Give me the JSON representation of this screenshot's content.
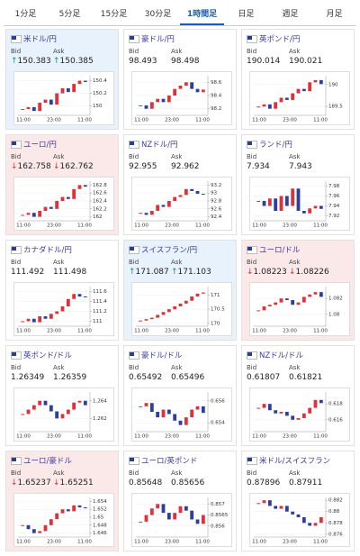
{
  "tabs": [
    "1分足",
    "5分足",
    "15分足",
    "30分足",
    "1時間足",
    "日足",
    "週足",
    "月足"
  ],
  "active_tab": 4,
  "labels": {
    "bid": "Bid",
    "ask": "Ask"
  },
  "x_labels": [
    "11:00",
    "23:00",
    "11:00"
  ],
  "cards": [
    {
      "name": "米ドル/円",
      "bid": "150.383",
      "ask": "150.385",
      "direction": "up",
      "chart": {
        "type": "candlestick",
        "ylim": [
          149.85,
          150.48
        ],
        "yticks": [
          150,
          150.2,
          150.4
        ],
        "values": [
          149.95,
          149.98,
          149.92,
          150.05,
          150.1,
          150.02,
          150.2,
          150.28,
          150.22,
          150.35,
          150.4,
          150.38
        ]
      }
    },
    {
      "name": "豪ドル/円",
      "bid": "98.493",
      "ask": "98.498",
      "direction": "none",
      "chart": {
        "type": "candlestick",
        "ylim": [
          98.1,
          98.7
        ],
        "yticks": [
          98.2,
          98.4,
          98.6
        ],
        "values": [
          98.25,
          98.2,
          98.3,
          98.35,
          98.3,
          98.4,
          98.5,
          98.55,
          98.6,
          98.5,
          98.45,
          98.49
        ]
      }
    },
    {
      "name": "英ポンド/円",
      "bid": "190.014",
      "ask": "190.021",
      "direction": "none",
      "chart": {
        "type": "candlestick",
        "ylim": [
          189.3,
          190.2
        ],
        "yticks": [
          189.5,
          190
        ],
        "values": [
          189.5,
          189.55,
          189.45,
          189.6,
          189.7,
          189.65,
          189.8,
          189.9,
          189.85,
          190.05,
          190.1,
          190.01
        ]
      }
    },
    {
      "name": "ユーロ/円",
      "bid": "162.758",
      "ask": "162.762",
      "direction": "down",
      "chart": {
        "type": "candlestick",
        "ylim": [
          161.9,
          162.9
        ],
        "yticks": [
          162,
          162.2,
          162.4,
          162.6,
          162.8
        ],
        "values": [
          162.05,
          162.1,
          162.0,
          162.15,
          162.25,
          162.2,
          162.4,
          162.5,
          162.45,
          162.7,
          162.8,
          162.76
        ]
      }
    },
    {
      "name": "NZドル/円",
      "bid": "92.955",
      "ask": "92.962",
      "direction": "none",
      "chart": {
        "type": "candlestick",
        "ylim": [
          92.3,
          93.3
        ],
        "yticks": [
          92.4,
          92.6,
          92.8,
          93,
          93.2
        ],
        "values": [
          92.5,
          92.45,
          92.55,
          92.7,
          92.65,
          92.8,
          92.9,
          92.95,
          93.1,
          93.05,
          92.98,
          92.96
        ]
      }
    },
    {
      "name": "ランド/円",
      "bid": "7.934",
      "ask": "7.943",
      "direction": "none",
      "chart": {
        "type": "candlestick",
        "ylim": [
          7.91,
          7.99
        ],
        "yticks": [
          7.92,
          7.94,
          7.96,
          7.98
        ],
        "values": [
          7.95,
          7.94,
          7.955,
          7.93,
          7.96,
          7.94,
          7.975,
          7.93,
          7.925,
          7.935,
          7.94,
          7.934
        ]
      }
    },
    {
      "name": "カナダドル/円",
      "bid": "111.492",
      "ask": "111.498",
      "direction": "none",
      "chart": {
        "type": "candlestick",
        "ylim": [
          110.9,
          111.7
        ],
        "yticks": [
          111,
          111.2,
          111.4,
          111.6
        ],
        "values": [
          111.0,
          111.05,
          110.98,
          111.1,
          111.05,
          111.15,
          111.2,
          111.3,
          111.45,
          111.55,
          111.5,
          111.49
        ]
      }
    },
    {
      "name": "スイスフラン/円",
      "bid": "171.087",
      "ask": "171.103",
      "direction": "up",
      "chart": {
        "type": "candlestick",
        "ylim": [
          169.9,
          171.3
        ],
        "yticks": [
          170,
          170.5,
          171
        ],
        "values": [
          170.1,
          170.15,
          170.2,
          170.3,
          170.4,
          170.5,
          170.6,
          170.7,
          170.8,
          170.95,
          171.05,
          171.09
        ]
      }
    },
    {
      "name": "ユーロ/ドル",
      "bid": "1.08223",
      "ask": "1.08226",
      "direction": "down",
      "chart": {
        "type": "candlestick",
        "ylim": [
          1.0785,
          1.0835
        ],
        "yticks": [
          1.08,
          1.082
        ],
        "values": [
          1.0805,
          1.081,
          1.0812,
          1.0815,
          1.082,
          1.0818,
          1.0812,
          1.0815,
          1.0822,
          1.0825,
          1.0828,
          1.0822
        ]
      }
    },
    {
      "name": "英ポンド/ドル",
      "bid": "1.26349",
      "ask": "1.26359",
      "direction": "none",
      "chart": {
        "type": "candlestick",
        "ylim": [
          1.2605,
          1.265
        ],
        "yticks": [
          1.262,
          1.264
        ],
        "values": [
          1.2625,
          1.263,
          1.2635,
          1.264,
          1.2635,
          1.2628,
          1.262,
          1.2625,
          1.263,
          1.2638,
          1.264,
          1.2635
        ]
      }
    },
    {
      "name": "豪ドル/ドル",
      "bid": "0.65492",
      "ask": "0.65496",
      "direction": "none",
      "chart": {
        "type": "candlestick",
        "ylim": [
          0.6532,
          0.6568
        ],
        "yticks": [
          0.654,
          0.656
        ],
        "values": [
          0.6555,
          0.6558,
          0.655,
          0.6545,
          0.6552,
          0.6548,
          0.6542,
          0.6538,
          0.6545,
          0.6552,
          0.6555,
          0.6549
        ]
      }
    },
    {
      "name": "NZドル/ドル",
      "bid": "0.61807",
      "ask": "0.61821",
      "direction": "none",
      "chart": {
        "type": "candlestick",
        "ylim": [
          0.6145,
          0.6195
        ],
        "yticks": [
          0.616,
          0.618
        ],
        "values": [
          0.6175,
          0.618,
          0.6172,
          0.6168,
          0.617,
          0.6165,
          0.616,
          0.6162,
          0.6168,
          0.6175,
          0.6185,
          0.6181
        ]
      }
    },
    {
      "name": "ユーロ/豪ドル",
      "bid": "1.65237",
      "ask": "1.65251",
      "direction": "down",
      "chart": {
        "type": "candlestick",
        "ylim": [
          1.645,
          1.655
        ],
        "yticks": [
          1.646,
          1.648,
          1.65,
          1.652,
          1.654
        ],
        "values": [
          1.648,
          1.647,
          1.646,
          1.6465,
          1.648,
          1.6495,
          1.651,
          1.652,
          1.6515,
          1.653,
          1.6525,
          1.6524
        ]
      }
    },
    {
      "name": "ユーロ/英ポンド",
      "bid": "0.85648",
      "ask": "0.85656",
      "direction": "none",
      "chart": {
        "type": "candlestick",
        "ylim": [
          0.8555,
          0.8573
        ],
        "yticks": [
          0.856,
          0.8565,
          0.857
        ],
        "values": [
          0.8562,
          0.8565,
          0.8568,
          0.857,
          0.8566,
          0.8563,
          0.8566,
          0.8569,
          0.8567,
          0.8563,
          0.8561,
          0.8565
        ]
      }
    },
    {
      "name": "米ドル/スイスフラン",
      "bid": "0.87896",
      "ask": "0.87911",
      "direction": "none",
      "chart": {
        "type": "candlestick",
        "ylim": [
          0.8755,
          0.8825
        ],
        "yticks": [
          0.876,
          0.878,
          0.88,
          0.882
        ],
        "values": [
          0.8815,
          0.882,
          0.881,
          0.8805,
          0.881,
          0.88,
          0.8795,
          0.879,
          0.878,
          0.8775,
          0.878,
          0.879
        ]
      }
    }
  ]
}
